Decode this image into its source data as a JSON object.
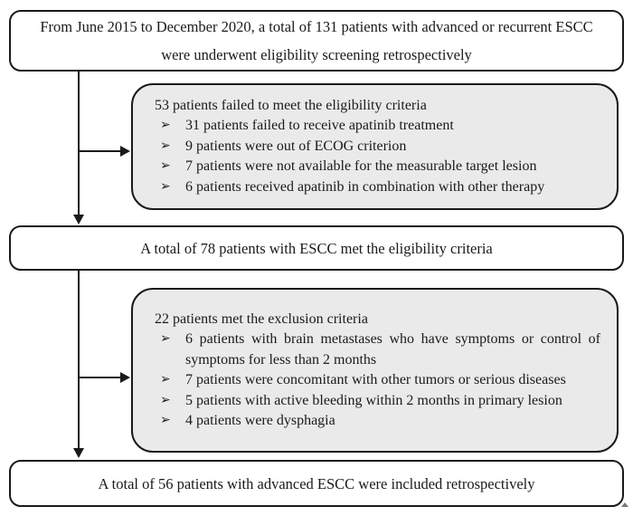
{
  "flowchart": {
    "top_box": {
      "text": "From June 2015 to December 2020, a total of 131 patients with advanced or recurrent ESCC were underwent eligibility screening retrospectively"
    },
    "exclusion_box_1": {
      "header": "53 patients failed to meet the eligibility criteria",
      "bullet_glyph": "➢",
      "items": [
        "31 patients failed to receive apatinib treatment",
        "9 patients were out of ECOG criterion",
        "7 patients were not available for the measurable target lesion",
        "6 patients received apatinib in combination with other therapy"
      ]
    },
    "middle_box": {
      "text": "A total of 78 patients with ESCC met the eligibility criteria"
    },
    "exclusion_box_2": {
      "header": "22 patients met the exclusion criteria",
      "bullet_glyph": "➢",
      "items": [
        "6 patients with brain metastases who have symptoms or control of symptoms for less than 2 months",
        "7 patients were concomitant with other tumors or serious diseases",
        "5 patients with active bleeding within 2 months in primary lesion",
        "4 patients were dysphagia"
      ]
    },
    "bottom_box": {
      "text": "A total of 56 patients with advanced ESCC were included retrospectively"
    },
    "colors": {
      "box_border": "#1a1a1a",
      "side_box_fill": "#eaeaea",
      "main_box_fill": "#ffffff",
      "arrow": "#1a1a1a",
      "text": "#1a1a1a"
    }
  }
}
